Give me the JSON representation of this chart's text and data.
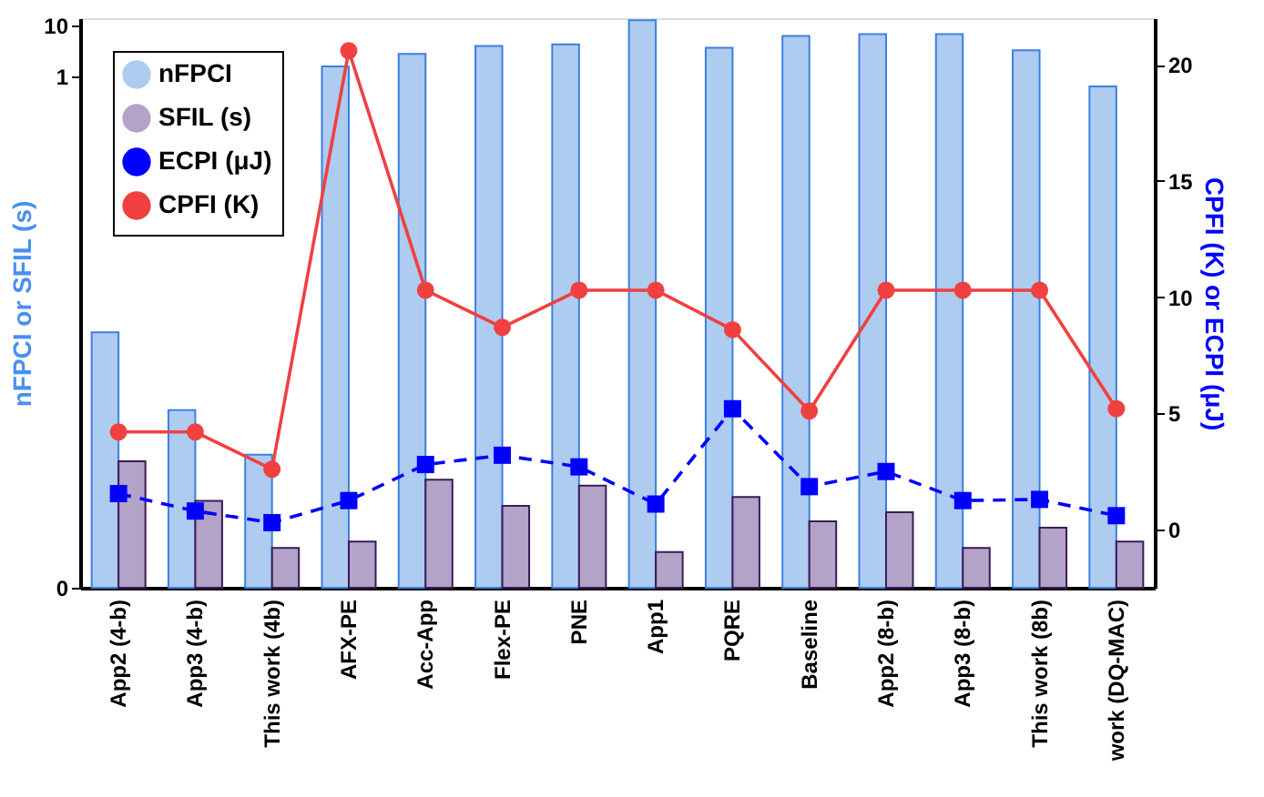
{
  "chart_data": {
    "type": "bar",
    "categories": [
      "App2 (4-b)",
      "App3 (4-b)",
      "This work (4b)",
      "AFX-PE",
      "Acc-App",
      "Flex-PE",
      "PNE",
      "App1",
      "PQRE",
      "Baseline",
      "App2 (8-b)",
      "App3 (8-b)",
      "This work (8b)",
      "work (DQ-MAC)"
    ],
    "ylabel": "nFPCI or SFIL (s)",
    "y2label": "CPFI (K) or ECPI (μJ)",
    "log": "y",
    "ylim": [
      1e-10,
      14
    ],
    "yticks": [
      {
        "value": 1e-10,
        "label": "0"
      },
      1,
      10
    ],
    "y2lim": [
      -2.5,
      22
    ],
    "y2ticks": [
      0,
      5,
      10,
      15,
      20
    ],
    "legend": "top left",
    "grid": false,
    "series": [
      {
        "name": "nFPCI",
        "color": "#aecbf0",
        "values": [
          1e-05,
          3e-07,
          4e-08,
          1.6,
          2.8,
          4,
          4.3,
          12.8,
          3.7,
          6.3,
          6.8,
          6.8,
          3.3,
          0.65
        ]
      },
      {
        "name": "SFIL (s)",
        "color": "#b4a3c8",
        "values": [
          3e-08,
          5e-09,
          6e-10,
          8e-10,
          1.3e-08,
          4e-09,
          1e-08,
          5e-10,
          6e-09,
          2e-09,
          3e-09,
          6e-10,
          1.5e-09,
          8e-10
        ]
      },
      {
        "name": "ECPI (μJ)",
        "type": "line",
        "axis": "y2",
        "color": "#0000ff",
        "marker": "square",
        "line_style": "dashed",
        "values": [
          1.55,
          0.8,
          0.3,
          1.25,
          2.8,
          3.2,
          2.7,
          1.1,
          5.2,
          1.85,
          2.5,
          1.25,
          1.3,
          0.6
        ]
      },
      {
        "name": "CPFI (K)",
        "type": "line",
        "axis": "y2",
        "color": "#f04040",
        "marker": "circle",
        "line_style": "solid",
        "values": [
          4.2,
          4.2,
          2.6,
          20.6,
          10.3,
          8.7,
          10.3,
          10.3,
          8.6,
          5.1,
          10.3,
          10.3,
          10.3,
          5.2
        ]
      }
    ]
  }
}
